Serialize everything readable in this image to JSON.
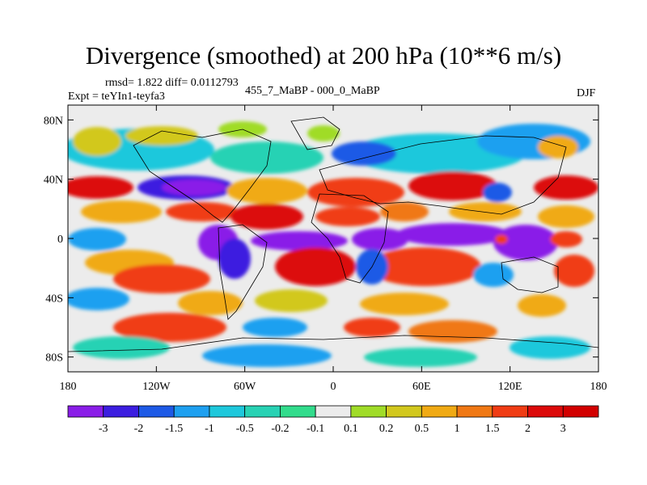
{
  "title": "Divergence (smoothed) at 200 hPa (10**6 m/s)",
  "stats": {
    "rmsd_label": "rmsd= 1.822 diff= 0.0112793"
  },
  "experiment": {
    "label": "Expt = teYIn1-teyfa3"
  },
  "comparison": {
    "label": "455_7_MaBP - 000_0_MaBP"
  },
  "season": {
    "label": "DJF"
  },
  "axes": {
    "lat_ticks": [
      {
        "label": "80N",
        "lat": 80
      },
      {
        "label": "40N",
        "lat": 40
      },
      {
        "label": "0",
        "lat": 0
      },
      {
        "label": "40S",
        "lat": -40
      },
      {
        "label": "80S",
        "lat": -80
      }
    ],
    "lon_ticks": [
      {
        "label": "180",
        "lon": -180
      },
      {
        "label": "120W",
        "lon": -120
      },
      {
        "label": "60W",
        "lon": -60
      },
      {
        "label": "0",
        "lon": 0
      },
      {
        "label": "60E",
        "lon": 60
      },
      {
        "label": "120E",
        "lon": 120
      },
      {
        "label": "180",
        "lon": 180
      }
    ],
    "lat_range": [
      -90,
      90
    ],
    "lon_range": [
      -180,
      180
    ]
  },
  "colorbar": {
    "labels": [
      "-3",
      "-2",
      "-1.5",
      "-1",
      "-0.5",
      "-0.2",
      "-0.1",
      "0.1",
      "0.2",
      "0.5",
      "1",
      "1.5",
      "2",
      "3"
    ],
    "colors": [
      "#8a1ee8",
      "#3c1ee0",
      "#1e5ae6",
      "#1ea0f0",
      "#1ec8dc",
      "#28d2b4",
      "#32dc8c",
      "#ececec",
      "#a0dc28",
      "#d2c81e",
      "#f0aa14",
      "#f07814",
      "#f03c14",
      "#dc0a0a",
      "#d20000"
    ]
  },
  "map_field": {
    "palette": {
      "neutral": "#ececec",
      "cyan": "#1ec8dc",
      "teal": "#28d2b4",
      "lightblue": "#1ea0f0",
      "blue": "#1e5ae6",
      "deepblue": "#3c1ee0",
      "purple": "#8a1ee8",
      "green": "#a0dc28",
      "yellow": "#d2c81e",
      "orange": "#f0aa14",
      "darkorange": "#f07814",
      "red": "#f03c14",
      "darkred": "#dc0a0a"
    }
  }
}
